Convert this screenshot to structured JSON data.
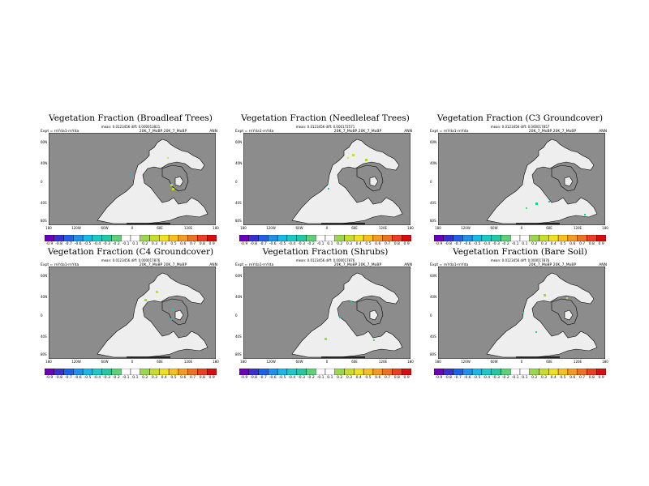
{
  "colorbar": {
    "labels": [
      "-0.9",
      "-0.8",
      "-0.7",
      "-0.6",
      "-0.5",
      "-0.4",
      "-0.3",
      "-0.2",
      "-0.1",
      "0.1",
      "0.2",
      "0.3",
      "0.4",
      "0.5",
      "0.6",
      "0.7",
      "0.8",
      "0.9"
    ],
    "colors": [
      "#6a00b8",
      "#3a2fd0",
      "#2060e8",
      "#1e90f0",
      "#19b8e8",
      "#1ec8c8",
      "#26c8a0",
      "#5fd07a",
      "#ffffff",
      "#ffffff",
      "#9bd84a",
      "#c8dc30",
      "#f0e020",
      "#f5c020",
      "#f59a20",
      "#f07020",
      "#e84020",
      "#d01010"
    ]
  },
  "panels": [
    {
      "title": "Vegetation Fraction (Broadleaf Trees)",
      "stats": "mean: 0.0123456 diff: 0.000013821",
      "expt": "Expt = rnYda1-rnYda",
      "case": "20K_7_MoBP  20K_7_MoBP",
      "period": "ANN",
      "lat_labels": [
        "60N",
        "40N",
        "0",
        "40S",
        "80S"
      ],
      "lon_labels": [
        "180",
        "120W",
        "60W",
        "0",
        "60E",
        "120E",
        "180"
      ],
      "anomaly_colors": [
        "#c8dc30",
        "#9bd84a",
        "#f0e020",
        "#19b8e8"
      ]
    },
    {
      "title": "Vegetation Fraction (Needleleaf Trees)",
      "stats": "mean: 0.0123456 diff: 0.000172571",
      "expt": "Expt = rnYda1-rnYda",
      "case": "20K_7_MoBP  20K_7_MoBP",
      "period": "ANN",
      "lat_labels": [
        "60N",
        "40N",
        "0",
        "40S",
        "80S"
      ],
      "lon_labels": [
        "180",
        "120W",
        "60W",
        "0",
        "60E",
        "120E",
        "180"
      ],
      "anomaly_colors": [
        "#c8dc30",
        "#9bd84a",
        "#f0e020",
        "#1ec8c8"
      ]
    },
    {
      "title": "Vegetation Fraction (C3 Groundcover)",
      "stats": "mean: 0.0123456 diff: 0.000017857",
      "expt": "Expt = rnYda1-rnYda",
      "case": "20K_7_MoBP  20K_7_MoBP",
      "period": "ANN",
      "lat_labels": [
        "60N",
        "40N",
        "0",
        "40S",
        "80S"
      ],
      "lon_labels": [
        "180",
        "120W",
        "60W",
        "0",
        "60E",
        "120E",
        "180"
      ],
      "anomaly_colors": [
        "#26c8a0",
        "#1ec8c8",
        "#5fd07a",
        "#26c8a0"
      ]
    },
    {
      "title": "Vegetation Fraction (C4 Groundcover)",
      "stats": "mean: 0.0123456 diff: 0.000017876",
      "expt": "Expt = rnYda1-rnYda",
      "case": "20K_7_MoBP  20K_7_MoBP",
      "period": "ANN",
      "lat_labels": [
        "60N",
        "40N",
        "0",
        "40S",
        "80S"
      ],
      "lon_labels": [
        "180",
        "120W",
        "60W",
        "0",
        "60E",
        "120E",
        "180"
      ],
      "anomaly_colors": [
        "#9bd84a",
        "#c8dc30",
        "#1ec8c8",
        "#19b8e8"
      ]
    },
    {
      "title": "Vegetation Fraction (Shrubs)",
      "stats": "mean: 0.0123456 diff: 0.000017876",
      "expt": "Expt = rnYda1-rnYda",
      "case": "20K_7_MoBP  20K_7_MoBP",
      "period": "ANN",
      "lat_labels": [
        "60N",
        "40N",
        "0",
        "40S",
        "80S"
      ],
      "lon_labels": [
        "180",
        "120W",
        "60W",
        "0",
        "60E",
        "120E",
        "180"
      ],
      "anomaly_colors": [
        "#9bd84a",
        "#1ec8c8",
        "#26c8a0",
        "#5fd07a"
      ]
    },
    {
      "title": "Vegetation Fraction (Bare Soil)",
      "stats": "mean: 0.0123456 diff: 0.000017876",
      "expt": "Expt = rnYda1-rnYda",
      "case": "20K_7_MoBP  20K_7_MoBP",
      "period": "ANN",
      "lat_labels": [
        "60N",
        "40N",
        "0",
        "40S",
        "80S"
      ],
      "lon_labels": [
        "180",
        "120W",
        "60W",
        "0",
        "60E",
        "120E",
        "180"
      ],
      "anomaly_colors": [
        "#9bd84a",
        "#c8dc30",
        "#26c8a0",
        "#1ec8c8"
      ]
    }
  ]
}
